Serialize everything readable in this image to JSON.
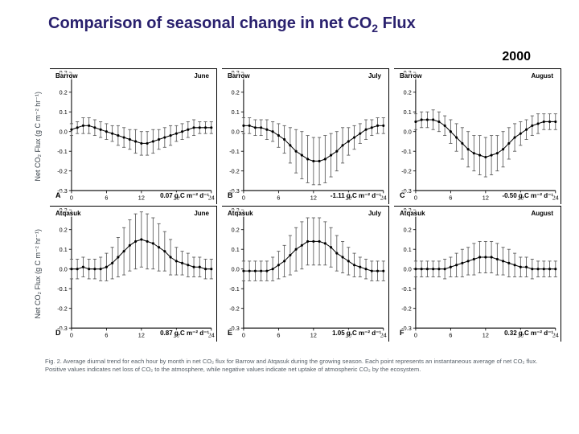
{
  "title_html": "Comparison of seasonal change in net CO<sub>2</sub> Flux",
  "year": "2000",
  "ylabel_html": "Net CO₂ Flux (g C m⁻² hr⁻¹)",
  "axes": {
    "xlim": [
      0,
      24
    ],
    "xticks": [
      0,
      6,
      12,
      18,
      24
    ],
    "top_ylim": [
      -0.3,
      0.3
    ],
    "top_yticks": [
      -0.3,
      -0.2,
      -0.1,
      0.0,
      0.1,
      0.2,
      0.3
    ],
    "bot_ylim": [
      -0.3,
      0.3
    ],
    "bot_yticks": [
      -0.3,
      -0.2,
      -0.1,
      0.0,
      0.1,
      0.2,
      0.3
    ],
    "axis_color": "#000000",
    "tick_fontsize": 7,
    "grid": false
  },
  "style": {
    "marker": "circle",
    "marker_size": 3,
    "marker_color": "#000000",
    "line_color": "#000000",
    "line_width": 1,
    "errorbar_color": "#555555",
    "errorbar_width": 0.8,
    "errorbar_cap": 2
  },
  "caption": "Fig. 2.  Average diurnal trend for each hour by month in net CO₂ flux for Barrow and Atqasuk during the growing season.  Each point represents an instantaneous average of net CO₂ flux.  Positive values indicates net loss of CO₂ to the atmosphere, while negative values indicate net uptake of atmospheric CO₂ by the ecosystem.",
  "panels": [
    {
      "id": "A",
      "row": "top",
      "site": "Barrow",
      "month": "June",
      "integrated": "0.07 g.C m⁻² d⁻¹",
      "ylim": [
        -0.3,
        0.3
      ],
      "x": [
        0,
        1,
        2,
        3,
        4,
        5,
        6,
        7,
        8,
        9,
        10,
        11,
        12,
        13,
        14,
        15,
        16,
        17,
        18,
        19,
        20,
        21,
        22,
        23,
        24
      ],
      "y": [
        0.01,
        0.02,
        0.03,
        0.03,
        0.02,
        0.01,
        0.0,
        -0.01,
        -0.02,
        -0.03,
        -0.04,
        -0.05,
        -0.06,
        -0.06,
        -0.05,
        -0.04,
        -0.03,
        -0.02,
        -0.01,
        0.0,
        0.01,
        0.02,
        0.02,
        0.02,
        0.02
      ],
      "err": [
        0.03,
        0.03,
        0.04,
        0.04,
        0.04,
        0.04,
        0.04,
        0.04,
        0.05,
        0.05,
        0.05,
        0.06,
        0.06,
        0.06,
        0.06,
        0.05,
        0.05,
        0.05,
        0.04,
        0.04,
        0.04,
        0.04,
        0.03,
        0.03,
        0.03
      ]
    },
    {
      "id": "B",
      "row": "top",
      "site": "Barrow",
      "month": "July",
      "integrated": "-1.11 g.C m⁻² d⁻¹",
      "ylim": [
        -0.3,
        0.3
      ],
      "x": [
        0,
        1,
        2,
        3,
        4,
        5,
        6,
        7,
        8,
        9,
        10,
        11,
        12,
        13,
        14,
        15,
        16,
        17,
        18,
        19,
        20,
        21,
        22,
        23,
        24
      ],
      "y": [
        0.03,
        0.03,
        0.02,
        0.02,
        0.01,
        0.0,
        -0.02,
        -0.04,
        -0.07,
        -0.1,
        -0.12,
        -0.14,
        -0.15,
        -0.15,
        -0.14,
        -0.12,
        -0.1,
        -0.07,
        -0.05,
        -0.03,
        -0.01,
        0.01,
        0.02,
        0.03,
        0.03
      ],
      "err": [
        0.04,
        0.04,
        0.04,
        0.04,
        0.05,
        0.05,
        0.06,
        0.07,
        0.09,
        0.11,
        0.12,
        0.12,
        0.12,
        0.12,
        0.12,
        0.11,
        0.1,
        0.09,
        0.07,
        0.06,
        0.05,
        0.05,
        0.04,
        0.04,
        0.04
      ]
    },
    {
      "id": "C",
      "row": "top",
      "site": "Barrow",
      "month": "August",
      "integrated": "-0.50 g.C m⁻² d⁻¹",
      "ylim": [
        -0.3,
        0.3
      ],
      "x": [
        0,
        1,
        2,
        3,
        4,
        5,
        6,
        7,
        8,
        9,
        10,
        11,
        12,
        13,
        14,
        15,
        16,
        17,
        18,
        19,
        20,
        21,
        22,
        23,
        24
      ],
      "y": [
        0.05,
        0.06,
        0.06,
        0.06,
        0.05,
        0.03,
        0.0,
        -0.03,
        -0.06,
        -0.09,
        -0.11,
        -0.12,
        -0.13,
        -0.12,
        -0.11,
        -0.09,
        -0.06,
        -0.03,
        -0.01,
        0.01,
        0.03,
        0.04,
        0.05,
        0.05,
        0.05
      ],
      "err": [
        0.04,
        0.04,
        0.04,
        0.05,
        0.05,
        0.05,
        0.06,
        0.07,
        0.08,
        0.09,
        0.09,
        0.1,
        0.1,
        0.1,
        0.09,
        0.09,
        0.08,
        0.07,
        0.06,
        0.05,
        0.05,
        0.05,
        0.04,
        0.04,
        0.04
      ]
    },
    {
      "id": "D",
      "row": "bot",
      "site": "Atqasuk",
      "month": "June",
      "integrated": "0.87 g.C m⁻² d⁻¹",
      "ylim": [
        -0.3,
        0.3
      ],
      "x": [
        0,
        1,
        2,
        3,
        4,
        5,
        6,
        7,
        8,
        9,
        10,
        11,
        12,
        13,
        14,
        15,
        16,
        17,
        18,
        19,
        20,
        21,
        22,
        23,
        24
      ],
      "y": [
        0.0,
        0.0,
        0.01,
        0.0,
        0.0,
        0.0,
        0.01,
        0.03,
        0.06,
        0.09,
        0.12,
        0.14,
        0.15,
        0.14,
        0.13,
        0.11,
        0.09,
        0.06,
        0.04,
        0.03,
        0.02,
        0.01,
        0.01,
        0.0,
        0.0
      ],
      "err": [
        0.05,
        0.05,
        0.05,
        0.05,
        0.05,
        0.06,
        0.07,
        0.08,
        0.1,
        0.12,
        0.13,
        0.14,
        0.14,
        0.14,
        0.13,
        0.12,
        0.1,
        0.09,
        0.07,
        0.06,
        0.06,
        0.05,
        0.05,
        0.05,
        0.05
      ]
    },
    {
      "id": "E",
      "row": "bot",
      "site": "Atqasuk",
      "month": "July",
      "integrated": "1.05 g.C m⁻² d⁻¹",
      "ylim": [
        -0.3,
        0.3
      ],
      "x": [
        0,
        1,
        2,
        3,
        4,
        5,
        6,
        7,
        8,
        9,
        10,
        11,
        12,
        13,
        14,
        15,
        16,
        17,
        18,
        19,
        20,
        21,
        22,
        23,
        24
      ],
      "y": [
        -0.01,
        -0.01,
        -0.01,
        -0.01,
        -0.01,
        0.0,
        0.02,
        0.04,
        0.07,
        0.1,
        0.12,
        0.14,
        0.14,
        0.14,
        0.13,
        0.11,
        0.08,
        0.06,
        0.04,
        0.02,
        0.01,
        0.0,
        -0.01,
        -0.01,
        -0.01
      ],
      "err": [
        0.05,
        0.05,
        0.05,
        0.05,
        0.05,
        0.06,
        0.07,
        0.08,
        0.1,
        0.11,
        0.12,
        0.12,
        0.12,
        0.12,
        0.11,
        0.1,
        0.09,
        0.08,
        0.07,
        0.06,
        0.05,
        0.05,
        0.05,
        0.05,
        0.05
      ]
    },
    {
      "id": "F",
      "row": "bot",
      "site": "Atqasuk",
      "month": "August",
      "integrated": "0.32 g.C m⁻² d⁻¹",
      "ylim": [
        -0.3,
        0.3
      ],
      "x": [
        0,
        1,
        2,
        3,
        4,
        5,
        6,
        7,
        8,
        9,
        10,
        11,
        12,
        13,
        14,
        15,
        16,
        17,
        18,
        19,
        20,
        21,
        22,
        23,
        24
      ],
      "y": [
        0.0,
        0.0,
        0.0,
        0.0,
        0.0,
        0.0,
        0.01,
        0.02,
        0.03,
        0.04,
        0.05,
        0.06,
        0.06,
        0.06,
        0.05,
        0.04,
        0.03,
        0.02,
        0.01,
        0.01,
        0.0,
        0.0,
        0.0,
        0.0,
        0.0
      ],
      "err": [
        0.04,
        0.04,
        0.04,
        0.04,
        0.04,
        0.05,
        0.05,
        0.06,
        0.07,
        0.07,
        0.08,
        0.08,
        0.08,
        0.08,
        0.08,
        0.07,
        0.07,
        0.06,
        0.05,
        0.05,
        0.05,
        0.04,
        0.04,
        0.04,
        0.04
      ]
    }
  ]
}
